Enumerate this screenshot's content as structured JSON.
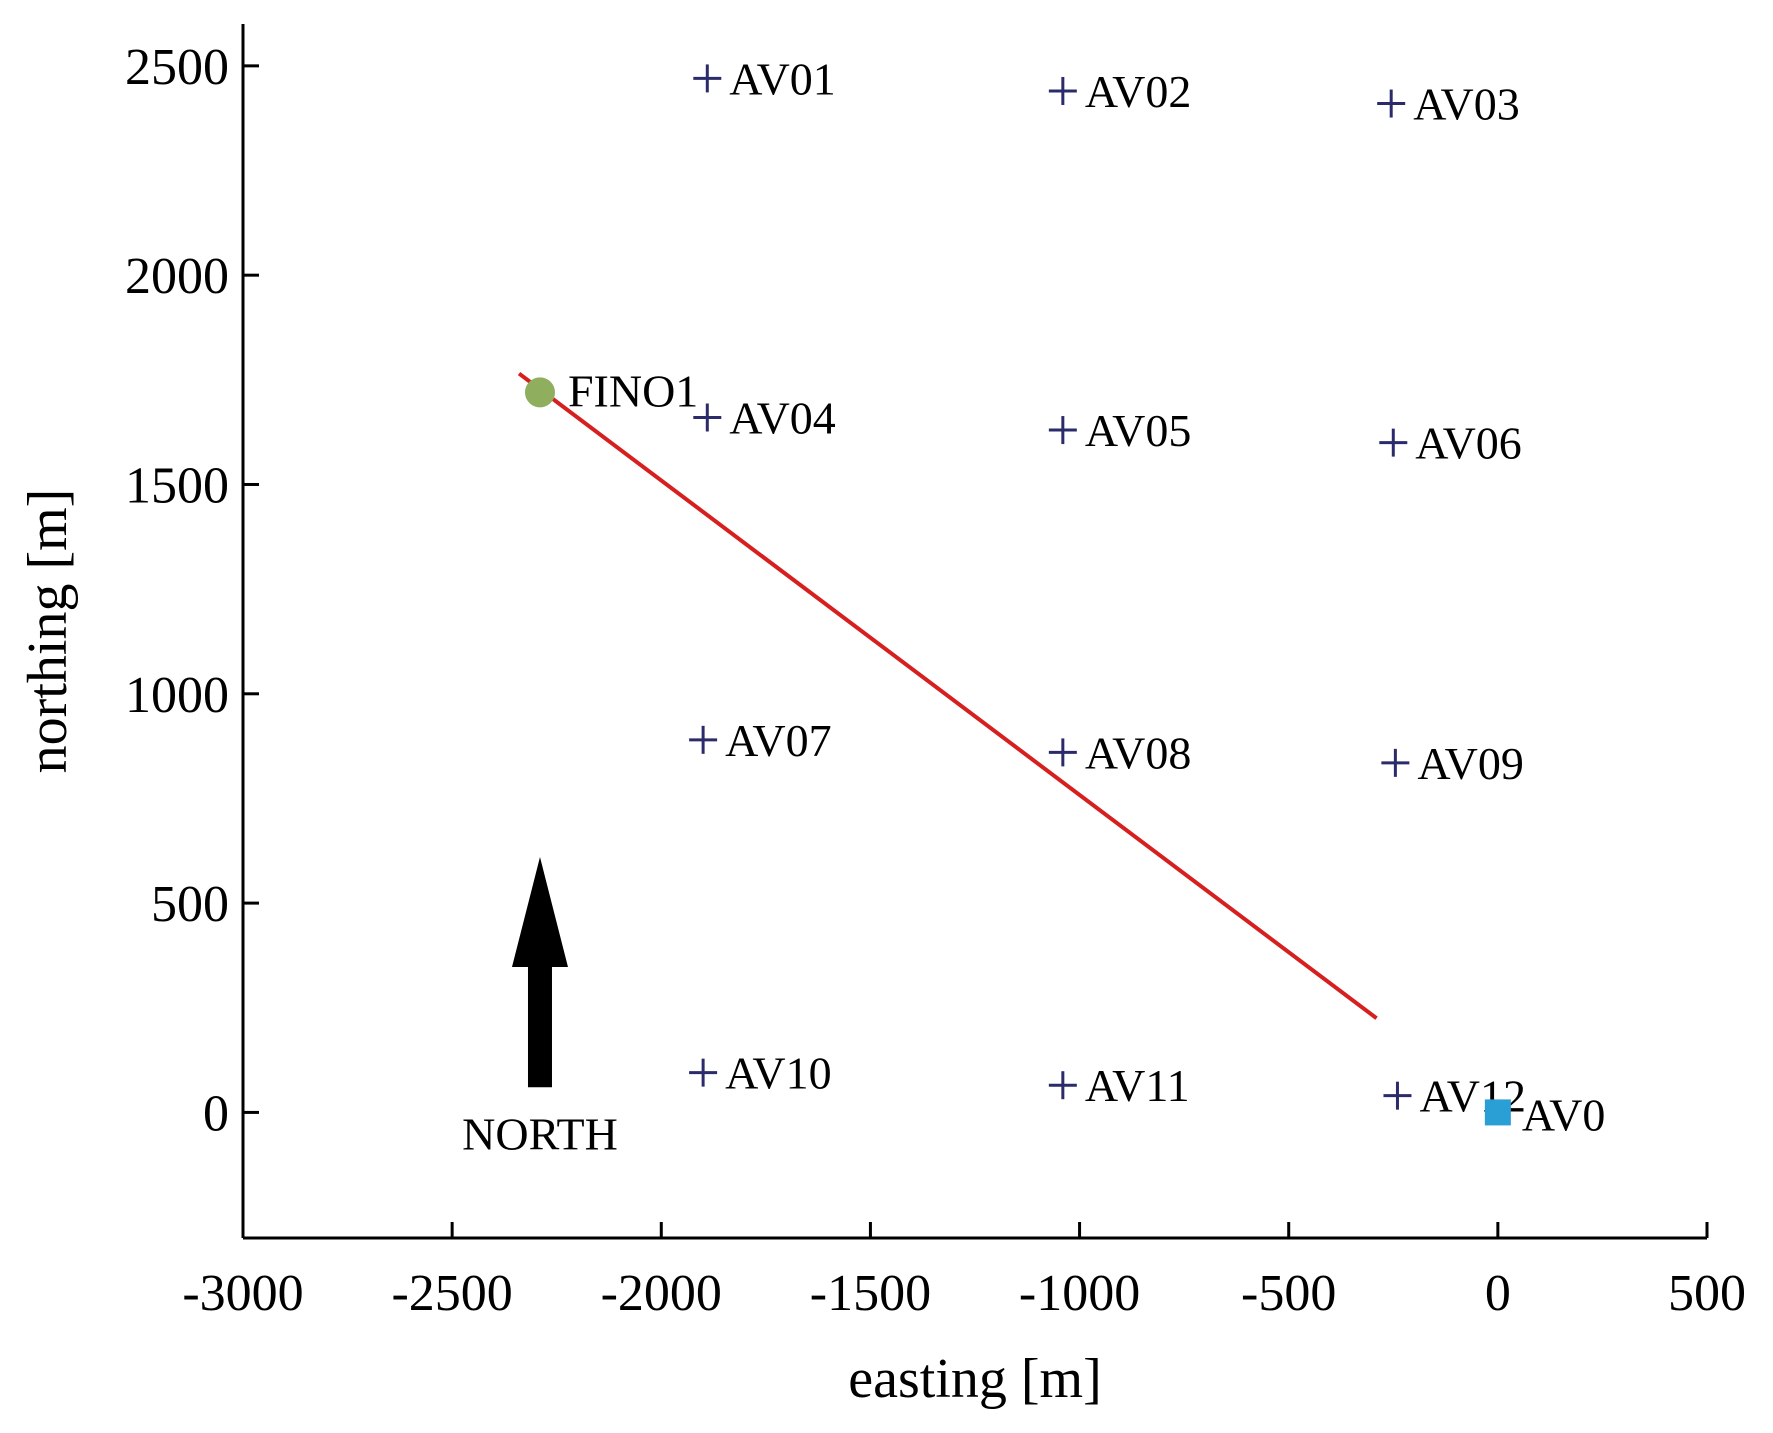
{
  "chart_data": {
    "type": "scatter",
    "xlabel": "easting [m]",
    "ylabel": "northing [m]",
    "xlim": [
      -3000,
      500
    ],
    "ylim": [
      -300,
      2600
    ],
    "xticks": [
      -3000,
      -2500,
      -2000,
      -1500,
      -1000,
      -500,
      0,
      500
    ],
    "yticks": [
      0,
      500,
      1000,
      1500,
      2000,
      2500
    ],
    "grid": false,
    "turbines": [
      {
        "label": "AV01",
        "x": -1890,
        "y": 2470
      },
      {
        "label": "AV02",
        "x": -1040,
        "y": 2440
      },
      {
        "label": "AV03",
        "x": -255,
        "y": 2410
      },
      {
        "label": "AV04",
        "x": -1890,
        "y": 1660
      },
      {
        "label": "AV05",
        "x": -1040,
        "y": 1630
      },
      {
        "label": "AV06",
        "x": -250,
        "y": 1600
      },
      {
        "label": "AV07",
        "x": -1900,
        "y": 890
      },
      {
        "label": "AV08",
        "x": -1040,
        "y": 860
      },
      {
        "label": "AV09",
        "x": -245,
        "y": 835
      },
      {
        "label": "AV10",
        "x": -1900,
        "y": 95
      },
      {
        "label": "AV11",
        "x": -1040,
        "y": 65
      },
      {
        "label": "AV12",
        "x": -240,
        "y": 40
      }
    ],
    "reference_point": {
      "label": "AV0",
      "x": 0,
      "y": 0
    },
    "mast": {
      "label": "FINO1",
      "x": -2290,
      "y": 1720
    },
    "transect_line": {
      "x": [
        -2340,
        -290
      ],
      "y": [
        1765,
        225
      ]
    },
    "north_arrow": {
      "label": "NORTH",
      "x": -2290,
      "y_start": 60,
      "y_end": 610
    },
    "colors": {
      "turbine_marker": "#2b2b6b",
      "reference_point": "#2a9fd6",
      "mast": "#8faf5f",
      "transect_line": "#d62020",
      "arrow": "#000000"
    }
  }
}
